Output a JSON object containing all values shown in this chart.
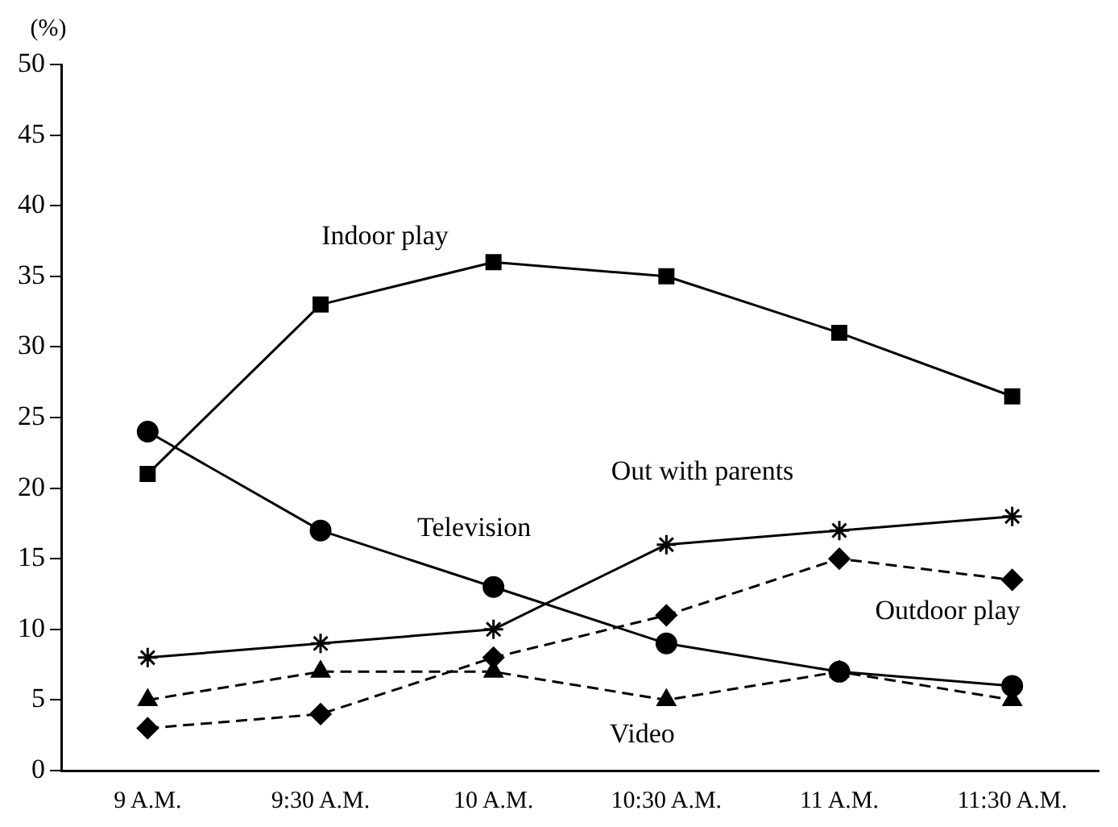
{
  "chart_data": {
    "type": "line",
    "ylabel": "(%)",
    "categories": [
      "9 A.M.",
      "9:30 A.M.",
      "10 A.M.",
      "10:30 A.M.",
      "11 A.M.",
      "11:30 A.M."
    ],
    "series": [
      {
        "name": "Indoor play",
        "color": "#000000",
        "marker": "square",
        "line_style": "solid",
        "values": [
          21,
          33,
          36,
          35,
          31,
          26.5
        ]
      },
      {
        "name": "Television",
        "color": "#000000",
        "marker": "circle",
        "line_style": "solid",
        "values": [
          24,
          17,
          13,
          9,
          7,
          6
        ]
      },
      {
        "name": "Out with parents",
        "color": "#000000",
        "marker": "cross",
        "line_style": "solid",
        "values": [
          8,
          9,
          10,
          16,
          17,
          18
        ]
      },
      {
        "name": "Outdoor play",
        "color": "#000000",
        "marker": "diamond",
        "line_style": "dashed",
        "values": [
          3,
          4,
          8,
          11,
          15,
          13.5
        ]
      },
      {
        "name": "Video",
        "color": "#000000",
        "marker": "triangle",
        "line_style": "dashed",
        "values": [
          5,
          7,
          7,
          5,
          7,
          5
        ]
      }
    ],
    "ylim": [
      0,
      50
    ],
    "yticks": [
      0,
      5,
      10,
      15,
      20,
      25,
      30,
      35,
      40,
      45,
      50
    ],
    "grid": false,
    "legend": false
  }
}
